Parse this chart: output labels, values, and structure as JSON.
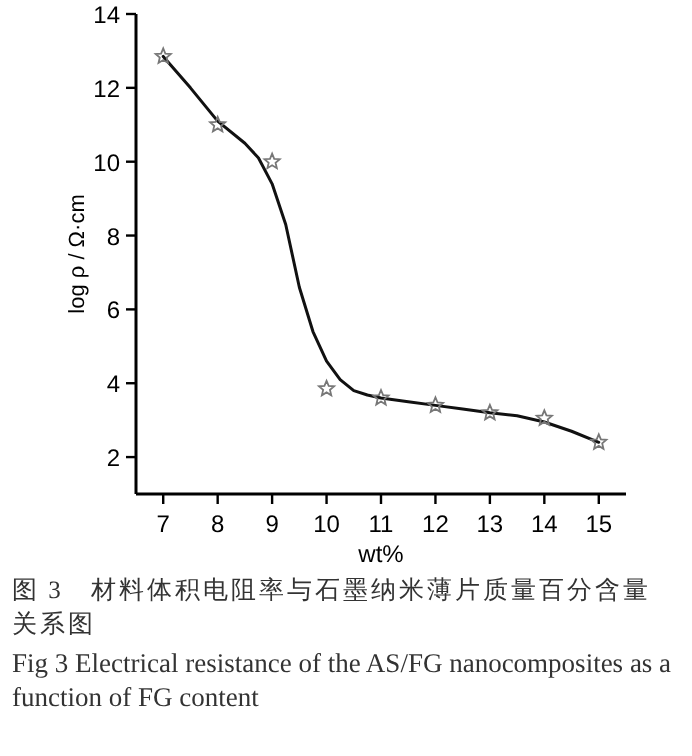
{
  "chart_data": {
    "type": "scatter",
    "xlabel": "wt%",
    "ylabel": "log ρ / Ω·cm",
    "xlim": [
      6.5,
      15.5
    ],
    "xticks": [
      7,
      8,
      9,
      10,
      11,
      12,
      13,
      14,
      15
    ],
    "ylim": [
      1,
      14
    ],
    "yticks": [
      2,
      4,
      6,
      8,
      10,
      12,
      14
    ],
    "grid": false,
    "series": [
      {
        "marker": "star",
        "color": "#777777",
        "x": [
          7,
          8,
          9,
          10,
          11,
          12,
          13,
          14,
          15
        ],
        "values": [
          12.85,
          11.0,
          10.0,
          3.85,
          3.6,
          3.4,
          3.2,
          3.05,
          2.4
        ]
      },
      {
        "type": "line",
        "marker": "none",
        "line_style": "solid",
        "color": "#111111",
        "x": [
          7,
          7.5,
          8,
          8.5,
          8.75,
          9,
          9.25,
          9.5,
          9.75,
          10,
          10.25,
          10.5,
          10.75,
          11,
          11.5,
          12,
          12.5,
          13,
          13.5,
          14,
          14.5,
          15
        ],
        "values": [
          12.85,
          12.0,
          11.1,
          10.5,
          10.1,
          9.4,
          8.3,
          6.6,
          5.4,
          4.6,
          4.1,
          3.8,
          3.68,
          3.6,
          3.5,
          3.4,
          3.3,
          3.2,
          3.12,
          2.95,
          2.7,
          2.4
        ]
      }
    ],
    "annotations": [
      "图 3　材料体积电阻率与石墨纳米薄片质量百分含量关系图",
      "Fig 3 Electrical resistance of the AS/FG nanocomposites as a function of FG content"
    ]
  }
}
